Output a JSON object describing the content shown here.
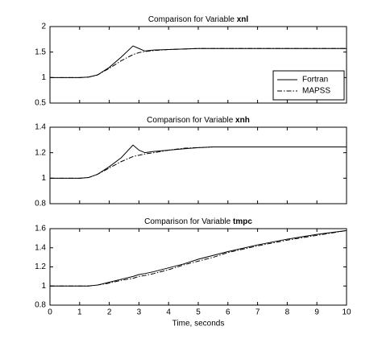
{
  "chart_data": [
    {
      "type": "line",
      "title": "Comparison for Variable",
      "title_variable": "xnl",
      "x": [
        0,
        0.5,
        1,
        1.3,
        1.6,
        2,
        2.4,
        2.8,
        3,
        3.2,
        3.5,
        4,
        4.5,
        5,
        5.5,
        6,
        7,
        8,
        9,
        10
      ],
      "series": [
        {
          "name": "Fortran",
          "color": "#000000",
          "dash": "solid",
          "values": [
            1,
            1,
            1,
            1.01,
            1.05,
            1.2,
            1.4,
            1.62,
            1.57,
            1.52,
            1.54,
            1.55,
            1.56,
            1.57,
            1.57,
            1.57,
            1.57,
            1.57,
            1.57,
            1.57
          ]
        },
        {
          "name": "MAPSS",
          "color": "#000000",
          "dash": "dashdot",
          "values": [
            1,
            1,
            1,
            1.01,
            1.05,
            1.18,
            1.33,
            1.45,
            1.49,
            1.51,
            1.53,
            1.55,
            1.56,
            1.57,
            1.57,
            1.57,
            1.57,
            1.57,
            1.57,
            1.57
          ]
        }
      ],
      "xlim": [
        0,
        10
      ],
      "xticks": [
        0,
        1,
        2,
        3,
        4,
        5,
        6,
        7,
        8,
        9,
        10
      ],
      "xtick_labels": false,
      "ylim": [
        0.5,
        2
      ],
      "yticks": [
        0.5,
        1,
        1.5,
        2
      ],
      "legend": "lower right"
    },
    {
      "type": "line",
      "title": "Comparison for Variable",
      "title_variable": "xnh",
      "x": [
        0,
        0.5,
        1,
        1.3,
        1.6,
        2,
        2.4,
        2.8,
        3,
        3.2,
        3.5,
        4,
        4.5,
        5,
        5.5,
        6,
        7,
        8,
        9,
        10
      ],
      "series": [
        {
          "color": "#000000",
          "dash": "solid",
          "values": [
            1,
            1,
            1,
            1.005,
            1.03,
            1.09,
            1.16,
            1.26,
            1.22,
            1.2,
            1.21,
            1.22,
            1.23,
            1.24,
            1.245,
            1.245,
            1.245,
            1.245,
            1.245,
            1.245
          ]
        },
        {
          "color": "#000000",
          "dash": "dashdot",
          "values": [
            1,
            1,
            1,
            1.005,
            1.03,
            1.08,
            1.13,
            1.17,
            1.18,
            1.19,
            1.2,
            1.22,
            1.235,
            1.24,
            1.245,
            1.245,
            1.245,
            1.245,
            1.245,
            1.245
          ]
        }
      ],
      "xlim": [
        0,
        10
      ],
      "xticks": [
        0,
        1,
        2,
        3,
        4,
        5,
        6,
        7,
        8,
        9,
        10
      ],
      "xtick_labels": false,
      "ylim": [
        0.8,
        1.4
      ],
      "yticks": [
        0.8,
        1,
        1.2,
        1.4
      ]
    },
    {
      "type": "line",
      "title": "Comparison for Variable",
      "title_variable": "tmpc",
      "x": [
        0,
        0.5,
        1,
        1.3,
        1.6,
        2,
        2.4,
        2.8,
        3,
        3.2,
        3.5,
        4,
        4.5,
        5,
        5.5,
        6,
        7,
        8,
        9,
        10
      ],
      "series": [
        {
          "color": "#000000",
          "dash": "solid",
          "values": [
            1,
            1,
            1,
            1,
            1.01,
            1.04,
            1.07,
            1.1,
            1.12,
            1.13,
            1.15,
            1.19,
            1.23,
            1.28,
            1.32,
            1.36,
            1.43,
            1.49,
            1.54,
            1.58
          ]
        },
        {
          "color": "#000000",
          "dash": "dashdot",
          "values": [
            1,
            1,
            1,
            1,
            1.01,
            1.03,
            1.06,
            1.08,
            1.1,
            1.11,
            1.13,
            1.17,
            1.22,
            1.26,
            1.3,
            1.35,
            1.42,
            1.48,
            1.53,
            1.58
          ]
        }
      ],
      "xlim": [
        0,
        10
      ],
      "xticks": [
        0,
        1,
        2,
        3,
        4,
        5,
        6,
        7,
        8,
        9,
        10
      ],
      "xtick_labels": true,
      "xlabel": "Time, seconds",
      "ylim": [
        0.8,
        1.6
      ],
      "yticks": [
        0.8,
        1,
        1.2,
        1.4,
        1.6
      ]
    }
  ]
}
